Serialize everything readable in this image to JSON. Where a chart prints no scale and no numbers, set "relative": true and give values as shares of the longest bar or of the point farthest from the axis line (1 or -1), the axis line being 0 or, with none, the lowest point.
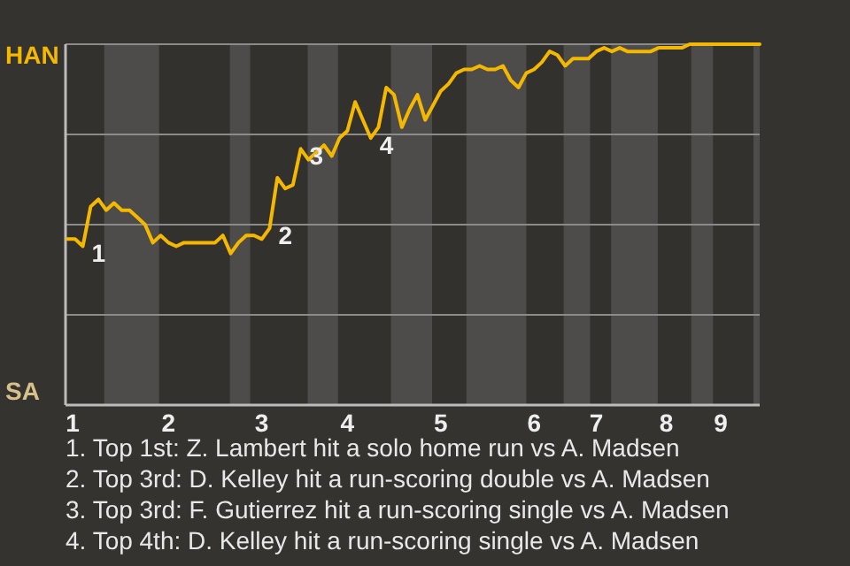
{
  "chart_data": {
    "type": "line",
    "relative": true,
    "categories": [
      "1",
      null,
      null,
      null,
      null,
      null,
      null,
      null,
      null,
      null,
      null,
      null,
      null,
      "2",
      null,
      null,
      null,
      null,
      null,
      null,
      null,
      null,
      null,
      null,
      null,
      "3",
      null,
      null,
      null,
      null,
      null,
      null,
      null,
      null,
      null,
      null,
      "4",
      null,
      null,
      null,
      null,
      null,
      null,
      null,
      null,
      null,
      null,
      null,
      "5",
      null,
      null,
      null,
      null,
      null,
      null,
      null,
      null,
      null,
      null,
      null,
      "6",
      null,
      null,
      null,
      null,
      null,
      null,
      null,
      "7",
      null,
      null,
      null,
      null,
      null,
      null,
      null,
      null,
      "8",
      null,
      null,
      null,
      null,
      null,
      null,
      "9",
      null,
      null,
      null,
      null,
      null
    ],
    "series": [
      {
        "color": "#f5b800",
        "values": [
          0.46,
          0.46,
          0.44,
          0.55,
          0.57,
          0.54,
          0.56,
          0.54,
          0.54,
          0.52,
          0.5,
          0.45,
          0.47,
          0.45,
          0.44,
          0.45,
          0.45,
          0.45,
          0.45,
          0.45,
          0.47,
          0.42,
          0.45,
          0.47,
          0.47,
          0.46,
          0.49,
          0.63,
          0.6,
          0.61,
          0.71,
          0.68,
          0.7,
          0.72,
          0.69,
          0.74,
          0.76,
          0.84,
          0.79,
          0.74,
          0.77,
          0.88,
          0.86,
          0.77,
          0.82,
          0.86,
          0.79,
          0.83,
          0.87,
          0.89,
          0.92,
          0.93,
          0.93,
          0.94,
          0.93,
          0.93,
          0.94,
          0.9,
          0.88,
          0.92,
          0.93,
          0.95,
          0.98,
          0.97,
          0.94,
          0.96,
          0.96,
          0.96,
          0.98,
          0.99,
          0.98,
          0.99,
          0.98,
          0.98,
          0.98,
          0.98,
          0.99,
          0.99,
          0.99,
          0.99,
          1,
          1,
          1,
          1,
          1,
          1,
          1,
          1,
          1,
          1
        ]
      }
    ],
    "grid": "y",
    "marker": "none",
    "line_style": "solid",
    "annotations": [
      "HAN",
      "SA",
      "1",
      "2",
      "3",
      "4",
      "1. Top 1st: Z. Lambert hit a solo home run vs A. Madsen",
      "2. Top 3rd: D. Kelley hit a run-scoring double vs A. Madsen",
      "3. Top 3rd: F. Gutierrez hit a run-scoring single vs A. Madsen",
      "4. Top 4th: D. Kelley hit a run-scoring single vs A. Madsen"
    ]
  }
}
